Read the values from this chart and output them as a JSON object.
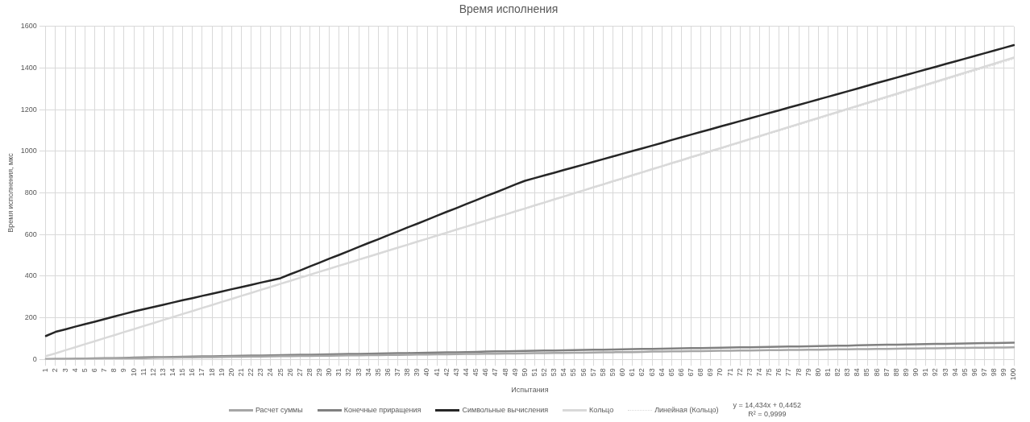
{
  "chart_data": {
    "type": "line",
    "title": "Время исполнения",
    "xlabel": "Испытания",
    "ylabel": "Время исполнения, мкс",
    "categories": [
      "1",
      "2",
      "3",
      "4",
      "5",
      "6",
      "7",
      "8",
      "9",
      "10",
      "11",
      "12",
      "13",
      "14",
      "15",
      "16",
      "17",
      "18",
      "19",
      "20",
      "21",
      "22",
      "23",
      "24",
      "25",
      "26",
      "27",
      "28",
      "29",
      "30",
      "31",
      "32",
      "33",
      "34",
      "35",
      "36",
      "37",
      "38",
      "39",
      "40",
      "41",
      "42",
      "43",
      "44",
      "45",
      "46",
      "47",
      "48",
      "49",
      "50",
      "51",
      "52",
      "53",
      "54",
      "55",
      "56",
      "57",
      "58",
      "59",
      "60",
      "61",
      "62",
      "63",
      "64",
      "65",
      "66",
      "67",
      "68",
      "69",
      "70",
      "71",
      "72",
      "73",
      "74",
      "75",
      "76",
      "77",
      "78",
      "79",
      "80",
      "81",
      "82",
      "83",
      "84",
      "85",
      "86",
      "87",
      "88",
      "89",
      "90",
      "91",
      "92",
      "93",
      "94",
      "95",
      "96",
      "97",
      "98",
      "99",
      "100"
    ],
    "ylim": [
      0,
      1600
    ],
    "yticks": [
      0,
      200,
      400,
      600,
      800,
      1000,
      1200,
      1400,
      1600
    ],
    "grid": true,
    "legend": "bottom",
    "marker": "none",
    "line_style": "solid",
    "series": [
      {
        "name": "Расчет суммы",
        "color": "#a6a6a6",
        "values": [
          1,
          1,
          2,
          2,
          3,
          3,
          4,
          5,
          5,
          6,
          6,
          7,
          8,
          8,
          9,
          9,
          10,
          10,
          11,
          12,
          12,
          13,
          13,
          14,
          15,
          15,
          16,
          16,
          17,
          17,
          18,
          19,
          19,
          20,
          20,
          21,
          21,
          22,
          23,
          23,
          24,
          24,
          25,
          26,
          26,
          27,
          27,
          28,
          28,
          29,
          30,
          30,
          31,
          31,
          32,
          32,
          33,
          34,
          34,
          35,
          35,
          36,
          37,
          37,
          38,
          38,
          39,
          39,
          40,
          41,
          41,
          42,
          42,
          43,
          44,
          44,
          45,
          45,
          46,
          46,
          47,
          48,
          48,
          49,
          49,
          50,
          50,
          51,
          52,
          52,
          53,
          53,
          54,
          55,
          55,
          56,
          56,
          57,
          57,
          58
        ]
      },
      {
        "name": "Конечные приращения",
        "color": "#808080",
        "values": [
          1,
          2,
          2,
          3,
          4,
          5,
          6,
          6,
          7,
          8,
          9,
          10,
          10,
          11,
          12,
          13,
          14,
          14,
          15,
          16,
          17,
          18,
          18,
          19,
          20,
          21,
          22,
          22,
          23,
          24,
          25,
          26,
          26,
          27,
          28,
          29,
          30,
          30,
          31,
          32,
          33,
          34,
          34,
          35,
          36,
          37,
          38,
          38,
          39,
          40,
          41,
          42,
          42,
          43,
          44,
          45,
          46,
          46,
          47,
          48,
          49,
          50,
          50,
          51,
          52,
          53,
          54,
          54,
          55,
          56,
          57,
          58,
          58,
          59,
          60,
          61,
          62,
          62,
          63,
          64,
          65,
          66,
          66,
          67,
          68,
          69,
          70,
          70,
          71,
          72,
          73,
          74,
          74,
          75,
          76,
          77,
          78,
          78,
          79,
          80
        ]
      },
      {
        "name": "Символьные вычисления",
        "color": "#262626",
        "values": [
          112,
          132,
          144,
          157,
          169,
          181,
          193,
          206,
          218,
          230,
          241,
          251,
          262,
          273,
          284,
          294,
          305,
          315,
          326,
          337,
          347,
          358,
          369,
          379,
          390,
          409,
          427,
          446,
          465,
          484,
          502,
          521,
          540,
          559,
          577,
          596,
          615,
          634,
          652,
          671,
          690,
          709,
          727,
          746,
          765,
          784,
          802,
          821,
          840,
          858,
          871,
          884,
          897,
          910,
          923,
          936,
          949,
          962,
          975,
          988,
          1001,
          1014,
          1027,
          1040,
          1054,
          1067,
          1080,
          1093,
          1106,
          1119,
          1132,
          1145,
          1158,
          1171,
          1184,
          1197,
          1210,
          1223,
          1236,
          1249,
          1262,
          1275,
          1288,
          1301,
          1315,
          1328,
          1341,
          1354,
          1367,
          1380,
          1393,
          1406,
          1419,
          1432,
          1445,
          1458,
          1471,
          1484,
          1497,
          1510
        ]
      },
      {
        "name": "Кольцо",
        "color": "#d9d9d9",
        "values": [
          15,
          29,
          44,
          58,
          73,
          87,
          102,
          116,
          131,
          145,
          160,
          174,
          189,
          203,
          218,
          232,
          247,
          261,
          276,
          290,
          305,
          319,
          334,
          348,
          363,
          377,
          392,
          406,
          421,
          435,
          450,
          464,
          479,
          493,
          508,
          522,
          537,
          551,
          566,
          580,
          595,
          609,
          624,
          638,
          653,
          667,
          682,
          696,
          711,
          725,
          740,
          754,
          769,
          783,
          798,
          812,
          827,
          841,
          856,
          870,
          885,
          899,
          914,
          928,
          943,
          957,
          972,
          986,
          1001,
          1015,
          1030,
          1044,
          1059,
          1073,
          1088,
          1102,
          1117,
          1131,
          1146,
          1160,
          1175,
          1189,
          1204,
          1218,
          1233,
          1247,
          1262,
          1276,
          1291,
          1305,
          1320,
          1334,
          1349,
          1363,
          1378,
          1392,
          1407,
          1421,
          1436,
          1450
        ]
      },
      {
        "name": "Линейная (Кольцо)",
        "type": "line",
        "color": "#d9d9d9",
        "line_style": "dotted",
        "x": [
          "1",
          "100"
        ],
        "values": [
          14.9,
          1443.8
        ]
      }
    ],
    "annotations": [
      "y = 14,434x + 0,4452\nR² = 0,9999"
    ]
  }
}
